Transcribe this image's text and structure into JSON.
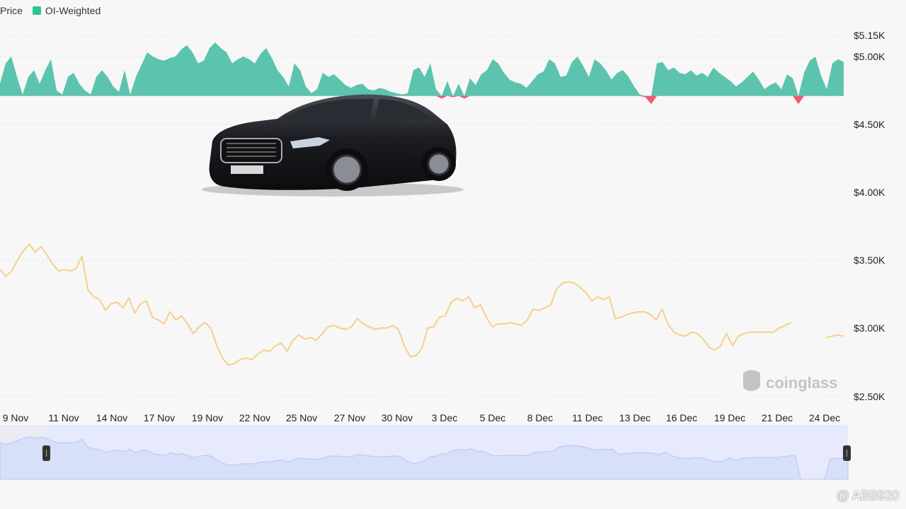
{
  "legend": {
    "price_label": "Price",
    "oi_label": "OI-Weighted"
  },
  "colors": {
    "positive": "#5cc4ae",
    "negative": "#ef5a6f",
    "price_line": "#f7cf8a",
    "navigator_fill": "#d9e1fb",
    "navigator_window": "#e8ecfc",
    "grid": "#e4e4e4",
    "text": "#222222"
  },
  "watermark": {
    "brand": "coinglass",
    "user": "@ ABB920"
  },
  "chart_data": {
    "type": "line",
    "title": "",
    "legend_position": "top-left",
    "grid": true,
    "y_axis": {
      "ticks": [
        "$5.15K",
        "$5.00K",
        "$4.50K",
        "$4.00K",
        "$3.50K",
        "$3.00K",
        "$2.50K"
      ],
      "tick_values": [
        5150,
        5000,
        4500,
        4000,
        3500,
        3000,
        2500
      ],
      "range": [
        2450,
        5250
      ]
    },
    "x_axis": {
      "ticks": [
        "9 Nov",
        "11 Nov",
        "14 Nov",
        "17 Nov",
        "19 Nov",
        "22 Nov",
        "25 Nov",
        "27 Nov",
        "30 Nov",
        "3 Dec",
        "5 Dec",
        "8 Dec",
        "11 Dec",
        "13 Dec",
        "16 Dec",
        "19 Dec",
        "21 Dec",
        "24 Dec"
      ]
    },
    "series": [
      {
        "name": "OI-Weighted",
        "kind": "area",
        "baseline": 4710,
        "values": [
          4800,
          4950,
          5000,
          4850,
          4720,
          4850,
          4900,
          4800,
          4900,
          4980,
          4750,
          4720,
          4850,
          4880,
          4800,
          4750,
          4720,
          4850,
          4900,
          4850,
          4780,
          4740,
          4900,
          4720,
          4850,
          4940,
          5030,
          5000,
          4980,
          4970,
          4990,
          5000,
          5050,
          5080,
          5030,
          4950,
          4970,
          5060,
          5100,
          5060,
          5030,
          4950,
          4980,
          5000,
          4980,
          4950,
          5020,
          5060,
          4990,
          4900,
          4850,
          4780,
          4950,
          4900,
          4780,
          4730,
          4760,
          4880,
          4850,
          4870,
          4830,
          4790,
          4770,
          4790,
          4800,
          4760,
          4750,
          4770,
          4760,
          4740,
          4730,
          4720,
          4730,
          4900,
          4920,
          4850,
          4950,
          4760,
          4690,
          4820,
          4700,
          4800,
          4690,
          4840,
          4790,
          4870,
          4900,
          4980,
          4950,
          4880,
          4830,
          4810,
          4800,
          4770,
          4820,
          4870,
          4890,
          4980,
          4950,
          4850,
          4860,
          4960,
          5000,
          4930,
          4850,
          4980,
          4950,
          4900,
          4830,
          4880,
          4900,
          4850,
          4780,
          4720,
          4700,
          4650,
          4950,
          4960,
          4900,
          4920,
          4880,
          4870,
          4900,
          4860,
          4880,
          4850,
          4920,
          4880,
          4850,
          4820,
          4780,
          4810,
          4850,
          4890,
          4830,
          4760,
          4790,
          4810,
          4760,
          4870,
          4840,
          4650,
          4880,
          4970,
          5000,
          4860,
          4760,
          4950,
          4980,
          4960
        ]
      },
      {
        "name": "Price",
        "kind": "line",
        "values": [
          3430,
          3380,
          3420,
          3500,
          3570,
          3620,
          3560,
          3600,
          3540,
          3470,
          3420,
          3430,
          3420,
          3440,
          3530,
          3280,
          3230,
          3210,
          3130,
          3180,
          3190,
          3150,
          3220,
          3110,
          3180,
          3200,
          3080,
          3060,
          3030,
          3120,
          3060,
          3090,
          3030,
          2960,
          3010,
          3040,
          3000,
          2870,
          2780,
          2730,
          2740,
          2770,
          2780,
          2770,
          2810,
          2840,
          2830,
          2870,
          2890,
          2830,
          2910,
          2950,
          2920,
          2930,
          2910,
          2960,
          3010,
          3020,
          3000,
          2990,
          3010,
          3070,
          3030,
          3010,
          2990,
          3000,
          3000,
          3020,
          2990,
          2870,
          2790,
          2800,
          2850,
          3000,
          3010,
          3080,
          3090,
          3190,
          3220,
          3200,
          3230,
          3150,
          3170,
          3080,
          3010,
          3030,
          3030,
          3040,
          3030,
          3020,
          3060,
          3140,
          3130,
          3150,
          3170,
          3290,
          3330,
          3340,
          3330,
          3300,
          3260,
          3200,
          3230,
          3210,
          3230,
          3070,
          3080,
          3100,
          3110,
          3120,
          3120,
          3100,
          3060,
          3140,
          3030,
          2970,
          2950,
          2940,
          2970,
          2960,
          2920,
          2860,
          2840,
          2870,
          2960,
          2870,
          2940,
          2960,
          2970,
          2970,
          2970,
          2970,
          2970,
          3000,
          3020,
          3040,
          null,
          null,
          null,
          null,
          null,
          2930,
          2940,
          2950,
          2940
        ]
      }
    ]
  }
}
